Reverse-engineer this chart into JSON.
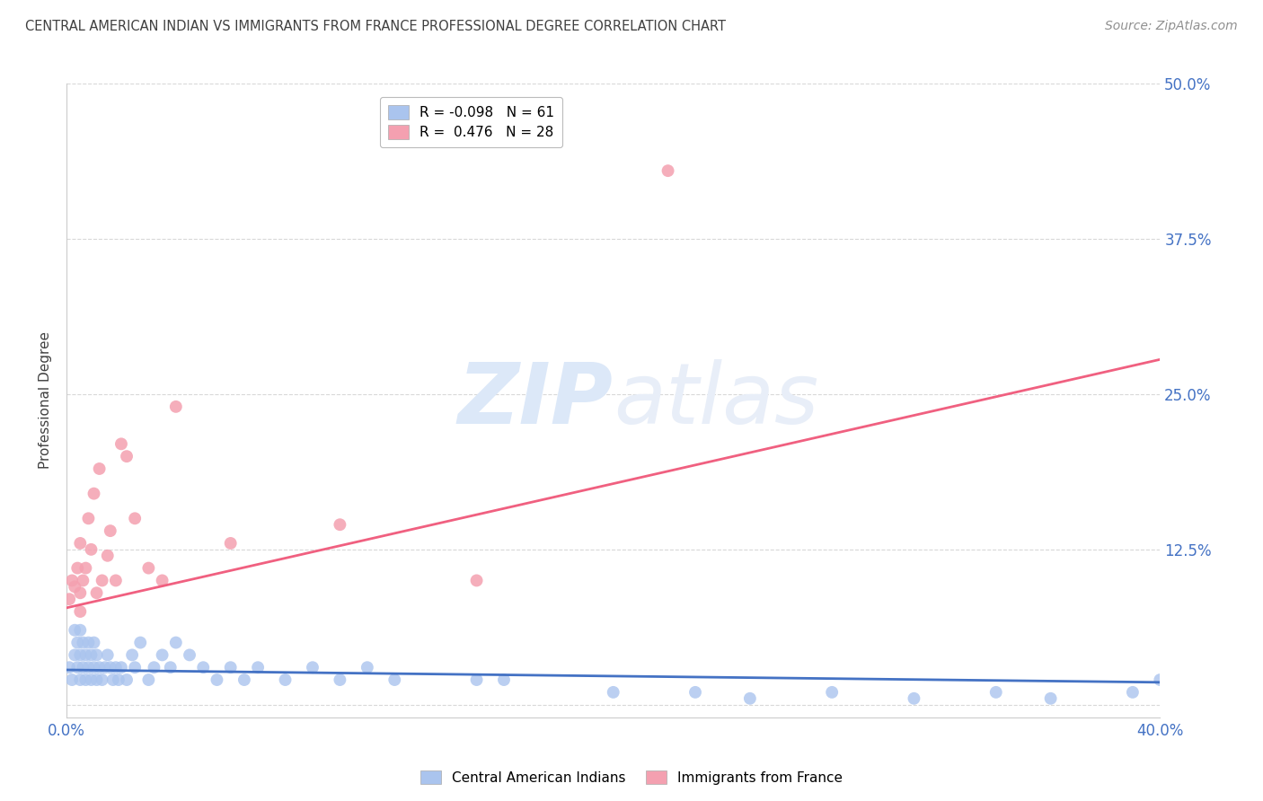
{
  "title": "CENTRAL AMERICAN INDIAN VS IMMIGRANTS FROM FRANCE PROFESSIONAL DEGREE CORRELATION CHART",
  "source": "Source: ZipAtlas.com",
  "ylabel": "Professional Degree",
  "xlim": [
    0.0,
    0.4
  ],
  "ylim": [
    -0.01,
    0.5
  ],
  "blue_color": "#aac4ee",
  "pink_color": "#f4a0b0",
  "blue_line_color": "#4472c4",
  "pink_line_color": "#f06080",
  "title_color": "#404040",
  "source_color": "#909090",
  "right_tick_color": "#4472c4",
  "watermark_color": "#dce8f8",
  "legend_label1": "R = -0.098   N = 61",
  "legend_label2": "R =  0.476   N = 28",
  "bottom_label1": "Central American Indians",
  "bottom_label2": "Immigrants from France",
  "blue_line_y_start": 0.028,
  "blue_line_y_end": 0.018,
  "pink_line_y_start": 0.078,
  "pink_line_y_end": 0.278,
  "marker_size": 100,
  "grid_color": "#d8d8d8",
  "background_color": "#ffffff",
  "blue_scatter_x": [
    0.001,
    0.002,
    0.003,
    0.003,
    0.004,
    0.004,
    0.005,
    0.005,
    0.005,
    0.006,
    0.006,
    0.007,
    0.007,
    0.008,
    0.008,
    0.009,
    0.009,
    0.01,
    0.01,
    0.011,
    0.011,
    0.012,
    0.013,
    0.014,
    0.015,
    0.016,
    0.017,
    0.018,
    0.019,
    0.02,
    0.022,
    0.024,
    0.025,
    0.027,
    0.03,
    0.032,
    0.035,
    0.038,
    0.04,
    0.045,
    0.05,
    0.055,
    0.06,
    0.065,
    0.07,
    0.08,
    0.09,
    0.1,
    0.11,
    0.12,
    0.15,
    0.16,
    0.2,
    0.23,
    0.25,
    0.28,
    0.31,
    0.34,
    0.36,
    0.39,
    0.4
  ],
  "blue_scatter_y": [
    0.03,
    0.02,
    0.04,
    0.06,
    0.03,
    0.05,
    0.02,
    0.04,
    0.06,
    0.03,
    0.05,
    0.02,
    0.04,
    0.03,
    0.05,
    0.02,
    0.04,
    0.03,
    0.05,
    0.02,
    0.04,
    0.03,
    0.02,
    0.03,
    0.04,
    0.03,
    0.02,
    0.03,
    0.02,
    0.03,
    0.02,
    0.04,
    0.03,
    0.05,
    0.02,
    0.03,
    0.04,
    0.03,
    0.05,
    0.04,
    0.03,
    0.02,
    0.03,
    0.02,
    0.03,
    0.02,
    0.03,
    0.02,
    0.03,
    0.02,
    0.02,
    0.02,
    0.01,
    0.01,
    0.005,
    0.01,
    0.005,
    0.01,
    0.005,
    0.01,
    0.02
  ],
  "pink_scatter_x": [
    0.001,
    0.002,
    0.003,
    0.004,
    0.005,
    0.005,
    0.006,
    0.007,
    0.008,
    0.009,
    0.01,
    0.011,
    0.012,
    0.013,
    0.015,
    0.016,
    0.018,
    0.02,
    0.022,
    0.025,
    0.03,
    0.035,
    0.04,
    0.06,
    0.1,
    0.15,
    0.22,
    0.005
  ],
  "pink_scatter_y": [
    0.085,
    0.1,
    0.095,
    0.11,
    0.09,
    0.13,
    0.1,
    0.11,
    0.15,
    0.125,
    0.17,
    0.09,
    0.19,
    0.1,
    0.12,
    0.14,
    0.1,
    0.21,
    0.2,
    0.15,
    0.11,
    0.1,
    0.24,
    0.13,
    0.145,
    0.1,
    0.43,
    0.075
  ]
}
